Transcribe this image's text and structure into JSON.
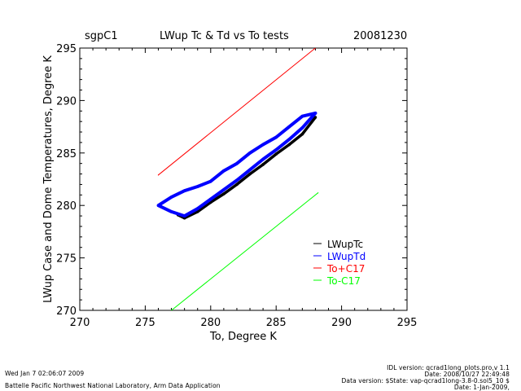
{
  "header": {
    "site": "sgpC1",
    "title": "LWup Tc & Td vs To tests",
    "date": "20081230"
  },
  "footer": {
    "timestamp": "Wed Jan  7 02:06:07 2009",
    "institution": "Battelle Pacific Northwest National Laboratory, Arm Data Application",
    "version_lines": [
      "IDL version: qcrad1long_plots.pro,v 1.1",
      "Date: 2008/10/27 22:49:48",
      "Data version: $State: vap-qcrad1long-3.8-0.sol5_10 $",
      "Date: 1-Jan-2009,"
    ]
  },
  "chart_data": {
    "type": "line",
    "title": "LWup Tc & Td vs To tests",
    "xlabel": "To, Degree K",
    "ylabel": "LWup Case and Dome Temperatures, Degree K",
    "xlim": [
      270,
      295
    ],
    "ylim": [
      270,
      295
    ],
    "xticks": [
      270,
      275,
      280,
      285,
      290,
      295
    ],
    "yticks": [
      270,
      275,
      280,
      285,
      290,
      295
    ],
    "grid": false,
    "legend_position": "bottom-right",
    "series": [
      {
        "name": "LWupTc",
        "color": "#000000",
        "style": "scatter-band",
        "x": [
          277.5,
          278.0,
          279.0,
          280.0,
          281.0,
          282.0,
          283.0,
          284.0,
          285.0,
          286.0,
          287.0,
          288.0
        ],
        "y": [
          279.1,
          278.8,
          279.4,
          280.3,
          281.1,
          282.0,
          283.0,
          283.9,
          284.9,
          285.8,
          286.8,
          288.4
        ]
      },
      {
        "name": "LWupTd",
        "color": "#0000ff",
        "style": "scatter-loop",
        "x": [
          276.0,
          277.0,
          278.0,
          279.0,
          280.0,
          281.0,
          282.0,
          283.0,
          284.0,
          285.0,
          286.0,
          287.0,
          288.0,
          287.0,
          286.0,
          285.0,
          284.0,
          283.0,
          282.0,
          281.0,
          280.0,
          279.0,
          278.0,
          277.0,
          276.0
        ],
        "y": [
          280.0,
          279.4,
          279.0,
          279.7,
          280.6,
          281.5,
          282.4,
          283.4,
          284.4,
          285.3,
          286.3,
          287.4,
          288.8,
          288.5,
          287.5,
          286.5,
          285.8,
          285.0,
          284.0,
          283.3,
          282.3,
          281.8,
          281.4,
          280.8,
          280.0
        ]
      },
      {
        "name": "To+C17",
        "color": "#ff0000",
        "x": [
          276.0,
          288.0
        ],
        "y": [
          282.9,
          295.0
        ]
      },
      {
        "name": "To-C17",
        "color": "#00ff00",
        "x": [
          277.0,
          288.2
        ],
        "y": [
          270.0,
          281.2
        ]
      }
    ]
  }
}
